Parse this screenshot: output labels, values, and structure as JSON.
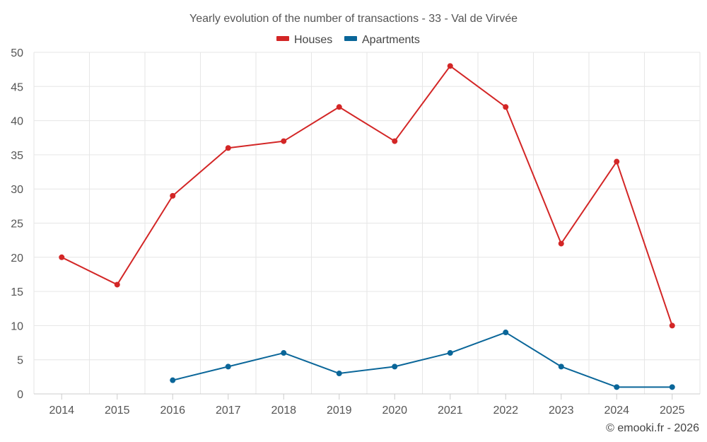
{
  "chart_data": {
    "type": "line",
    "title": "Yearly evolution of the number of transactions - 33 - Val de Virvée",
    "categories": [
      "2014",
      "2015",
      "2016",
      "2017",
      "2018",
      "2019",
      "2020",
      "2021",
      "2022",
      "2023",
      "2024",
      "2025"
    ],
    "series": [
      {
        "name": "Houses",
        "color": "#d32626",
        "values": [
          20,
          16,
          29,
          36,
          37,
          42,
          37,
          48,
          42,
          22,
          34,
          10
        ]
      },
      {
        "name": "Apartments",
        "color": "#0a6699",
        "values": [
          null,
          null,
          2,
          4,
          6,
          3,
          4,
          6,
          9,
          4,
          1,
          1
        ]
      }
    ],
    "ylim": [
      0,
      50
    ],
    "yticks": [
      0,
      5,
      10,
      15,
      20,
      25,
      30,
      35,
      40,
      45,
      50
    ],
    "xlabel": "",
    "ylabel": "",
    "grid": true,
    "legend_position": "top-center"
  },
  "credit": "© emooki.fr - 2026"
}
